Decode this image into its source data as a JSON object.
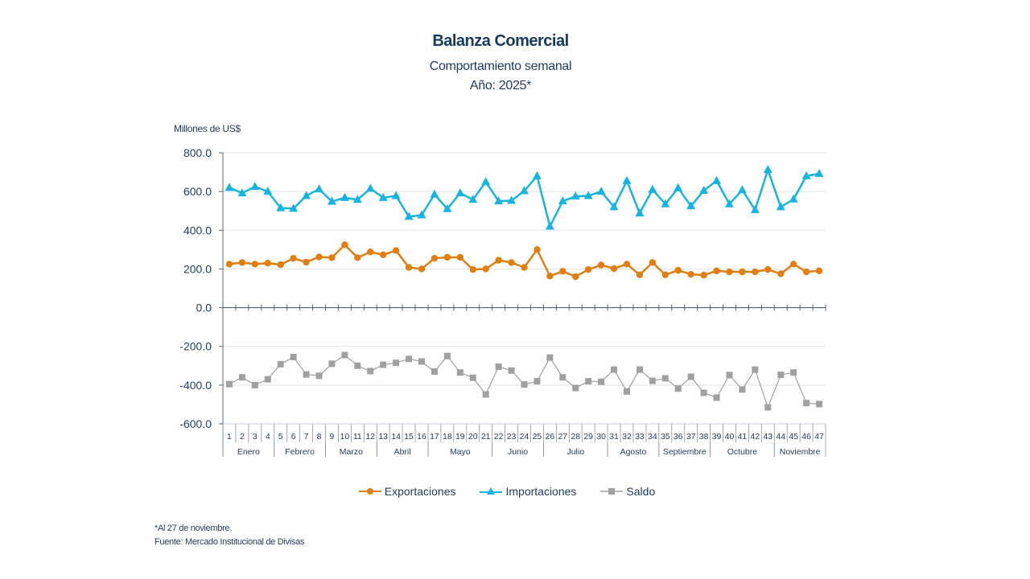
{
  "header": {
    "title": "Balanza Comercial",
    "subtitle": "Comportamiento semanal",
    "year_line": "Año: 2025*"
  },
  "footnotes": {
    "note": "*Al 27 de noviembre.",
    "source": "Fuente: Mercado Institucional de Divisas"
  },
  "chart_data": {
    "type": "line",
    "title": "Balanza Comercial",
    "subtitle": "Comportamiento semanal — Año: 2025*",
    "ylabel": "Millones de US$",
    "xlabel": "",
    "ylim": [
      -600,
      800
    ],
    "yticks": [
      800,
      600,
      400,
      200,
      0,
      -200,
      -400,
      -600
    ],
    "ytick_labels": [
      "800.0",
      "600.0",
      "400.0",
      "200.0",
      "0.0",
      "-200.0",
      "-400.0",
      "-600.0"
    ],
    "grid": true,
    "legend_position": "bottom-center",
    "categories": [
      "1",
      "2",
      "3",
      "4",
      "5",
      "6",
      "7",
      "8",
      "9",
      "10",
      "11",
      "12",
      "13",
      "14",
      "15",
      "16",
      "17",
      "18",
      "19",
      "20",
      "21",
      "22",
      "23",
      "24",
      "25",
      "26",
      "27",
      "28",
      "29",
      "30",
      "31",
      "32",
      "33",
      "34",
      "35",
      "36",
      "37",
      "38",
      "39",
      "40",
      "41",
      "42",
      "43",
      "44",
      "45",
      "46",
      "47"
    ],
    "month_groups": [
      {
        "label": "Enero",
        "start": 1,
        "end": 4
      },
      {
        "label": "Febrero",
        "start": 5,
        "end": 8
      },
      {
        "label": "Marzo",
        "start": 9,
        "end": 12
      },
      {
        "label": "Abril",
        "start": 13,
        "end": 16
      },
      {
        "label": "Mayo",
        "start": 17,
        "end": 21
      },
      {
        "label": "Junio",
        "start": 22,
        "end": 25
      },
      {
        "label": "Julio",
        "start": 26,
        "end": 30
      },
      {
        "label": "Agosto",
        "start": 31,
        "end": 34
      },
      {
        "label": "Septiembre",
        "start": 35,
        "end": 38
      },
      {
        "label": "Octubre",
        "start": 39,
        "end": 43
      },
      {
        "label": "Noviembre",
        "start": 44,
        "end": 47
      }
    ],
    "series": [
      {
        "name": "Exportaciones",
        "color": "#e07f10",
        "marker": "circle",
        "values": [
          225,
          233,
          225,
          230,
          222,
          255,
          235,
          262,
          258,
          325,
          258,
          288,
          273,
          295,
          208,
          200,
          255,
          260,
          260,
          197,
          200,
          245,
          233,
          208,
          300,
          163,
          188,
          160,
          197,
          220,
          202,
          225,
          170,
          233,
          170,
          193,
          172,
          168,
          190,
          185,
          185,
          185,
          197,
          175,
          225,
          185,
          190
        ]
      },
      {
        "name": "Importaciones",
        "color": "#18b4e0",
        "marker": "triangle",
        "values": [
          620,
          592,
          625,
          600,
          515,
          512,
          578,
          612,
          548,
          568,
          558,
          615,
          568,
          578,
          470,
          478,
          585,
          510,
          592,
          558,
          650,
          550,
          553,
          603,
          680,
          420,
          550,
          575,
          578,
          600,
          520,
          655,
          488,
          610,
          535,
          618,
          525,
          605,
          655,
          535,
          608,
          505,
          712,
          520,
          560,
          680,
          692
        ]
      },
      {
        "name": "Saldo",
        "color": "#a0a0a0",
        "marker": "square",
        "values": [
          -395,
          -360,
          -400,
          -370,
          -292,
          -255,
          -345,
          -352,
          -290,
          -245,
          -300,
          -328,
          -295,
          -285,
          -265,
          -278,
          -330,
          -250,
          -335,
          -362,
          -448,
          -305,
          -325,
          -397,
          -380,
          -258,
          -360,
          -415,
          -380,
          -383,
          -320,
          -433,
          -320,
          -378,
          -365,
          -418,
          -357,
          -440,
          -465,
          -348,
          -423,
          -320,
          -515,
          -347,
          -335,
          -493,
          -498
        ]
      }
    ]
  }
}
